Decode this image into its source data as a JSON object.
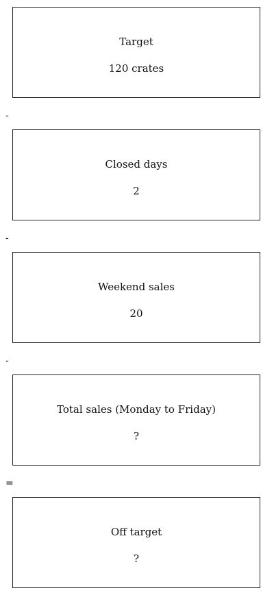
{
  "boxes": [
    {
      "title": "Target",
      "value": "120 crates"
    },
    {
      "title": "Closed days",
      "value": "2"
    },
    {
      "title": "Weekend sales",
      "value": "20"
    },
    {
      "title": "Total sales (Monday to Friday)",
      "value": "?"
    },
    {
      "title": "Off target",
      "value": "?"
    }
  ],
  "operators": [
    "-",
    "-",
    "-",
    "="
  ]
}
